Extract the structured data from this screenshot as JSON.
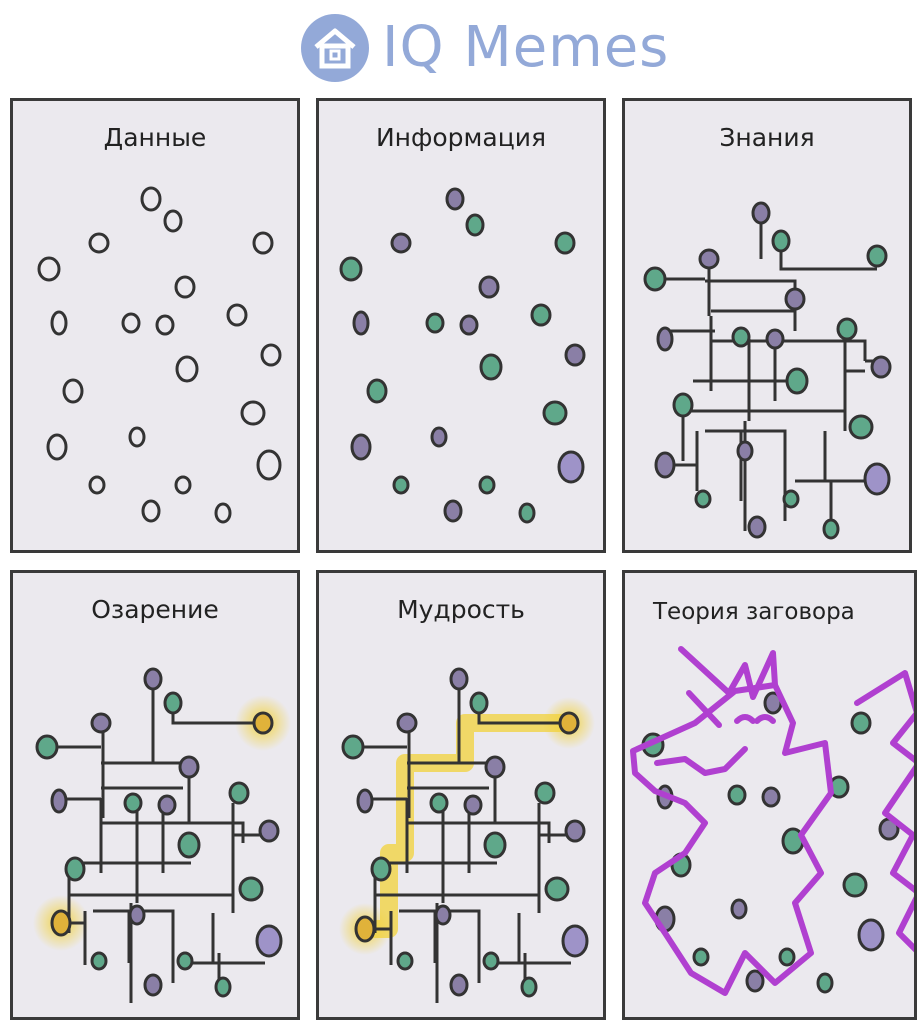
{
  "brand": {
    "name": "IQ Memes"
  },
  "panels": [
    {
      "title": "Данные"
    },
    {
      "title": "Информация"
    },
    {
      "title": "Знания"
    },
    {
      "title": "Озарение"
    },
    {
      "title": "Мудрость"
    },
    {
      "title": "Теория заговора"
    }
  ],
  "colors": {
    "brand": "#93a9d8",
    "panel_bg": "#ebe9ee",
    "green_dot": "#5fa88a",
    "purple_dot": "#8a7fa6",
    "lilac_dot": "#9e93c8",
    "highlight": "#f2d23a",
    "unicorn": "#b040d0"
  }
}
